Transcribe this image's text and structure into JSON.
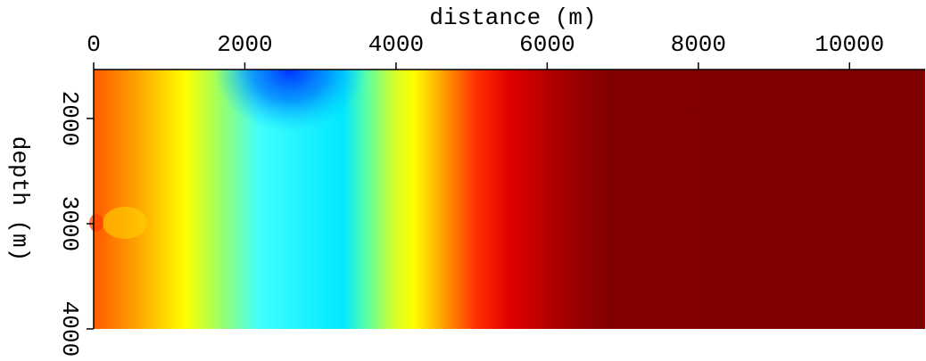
{
  "chart_data": {
    "type": "heatmap",
    "xlabel": "distance (m)",
    "ylabel": "depth (m)",
    "xlim": [
      0,
      11000
    ],
    "xticks": [
      0,
      2000,
      4000,
      6000,
      8000,
      10000
    ],
    "ylim": [
      1535,
      4000
    ],
    "yticks": [
      2000,
      3000,
      4000
    ],
    "y_inverted": true
  }
}
